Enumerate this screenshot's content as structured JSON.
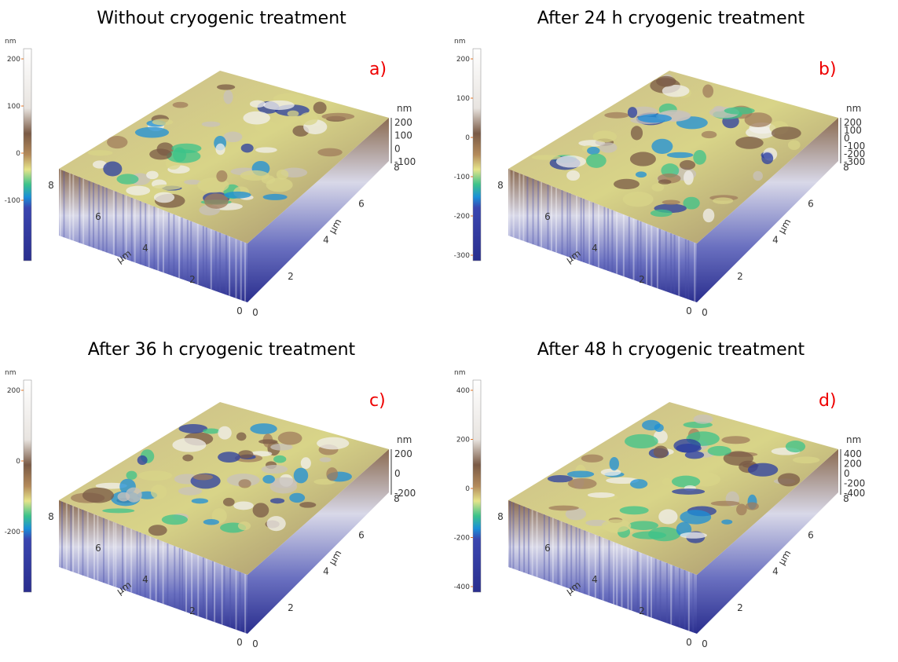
{
  "panels": [
    {
      "title": "Without cryogenic treatment",
      "label": "a)",
      "colorbar": {
        "unit": "nm",
        "ticks": [
          "200",
          "100",
          "0",
          "-100"
        ]
      },
      "zaxis": {
        "unit": "nm",
        "ticks": [
          "200",
          "100",
          "0",
          "-100"
        ]
      },
      "left_axis": {
        "unit": "µm",
        "ticks": [
          "0",
          "2",
          "4",
          "6",
          "8"
        ]
      },
      "right_axis": {
        "unit": "µm",
        "ticks": [
          "0",
          "2",
          "4",
          "6",
          "8"
        ]
      }
    },
    {
      "title": "After 24 h cryogenic treatment",
      "label": "b)",
      "colorbar": {
        "unit": "nm",
        "ticks": [
          "200",
          "100",
          "0",
          "-100",
          "-200",
          "-300"
        ]
      },
      "zaxis": {
        "unit": "nm",
        "ticks": [
          "200",
          "100",
          "0",
          "-100",
          "-200",
          "-300"
        ]
      },
      "left_axis": {
        "unit": "µm",
        "ticks": [
          "0",
          "2",
          "4",
          "6",
          "8"
        ]
      },
      "right_axis": {
        "unit": "µm",
        "ticks": [
          "0",
          "2",
          "4",
          "6",
          "8"
        ]
      }
    },
    {
      "title": "After 36 h cryogenic treatment",
      "label": "c)",
      "colorbar": {
        "unit": "nm",
        "ticks": [
          "200",
          "0",
          "-200"
        ]
      },
      "zaxis": {
        "unit": "nm",
        "ticks": [
          "200",
          "0",
          "-200"
        ]
      },
      "left_axis": {
        "unit": "µm",
        "ticks": [
          "0",
          "2",
          "4",
          "6",
          "8"
        ]
      },
      "right_axis": {
        "unit": "µm",
        "ticks": [
          "0",
          "2",
          "4",
          "6",
          "8"
        ]
      }
    },
    {
      "title": "After 48 h cryogenic treatment",
      "label": "d)",
      "colorbar": {
        "unit": "nm",
        "ticks": [
          "400",
          "200",
          "0",
          "-200",
          "-400"
        ]
      },
      "zaxis": {
        "unit": "nm",
        "ticks": [
          "400",
          "200",
          "0",
          "-200",
          "-400"
        ]
      },
      "left_axis": {
        "unit": "µm",
        "ticks": [
          "0",
          "2",
          "4",
          "6",
          "8"
        ]
      },
      "right_axis": {
        "unit": "µm",
        "ticks": [
          "0",
          "2",
          "4",
          "6",
          "8"
        ]
      }
    }
  ]
}
